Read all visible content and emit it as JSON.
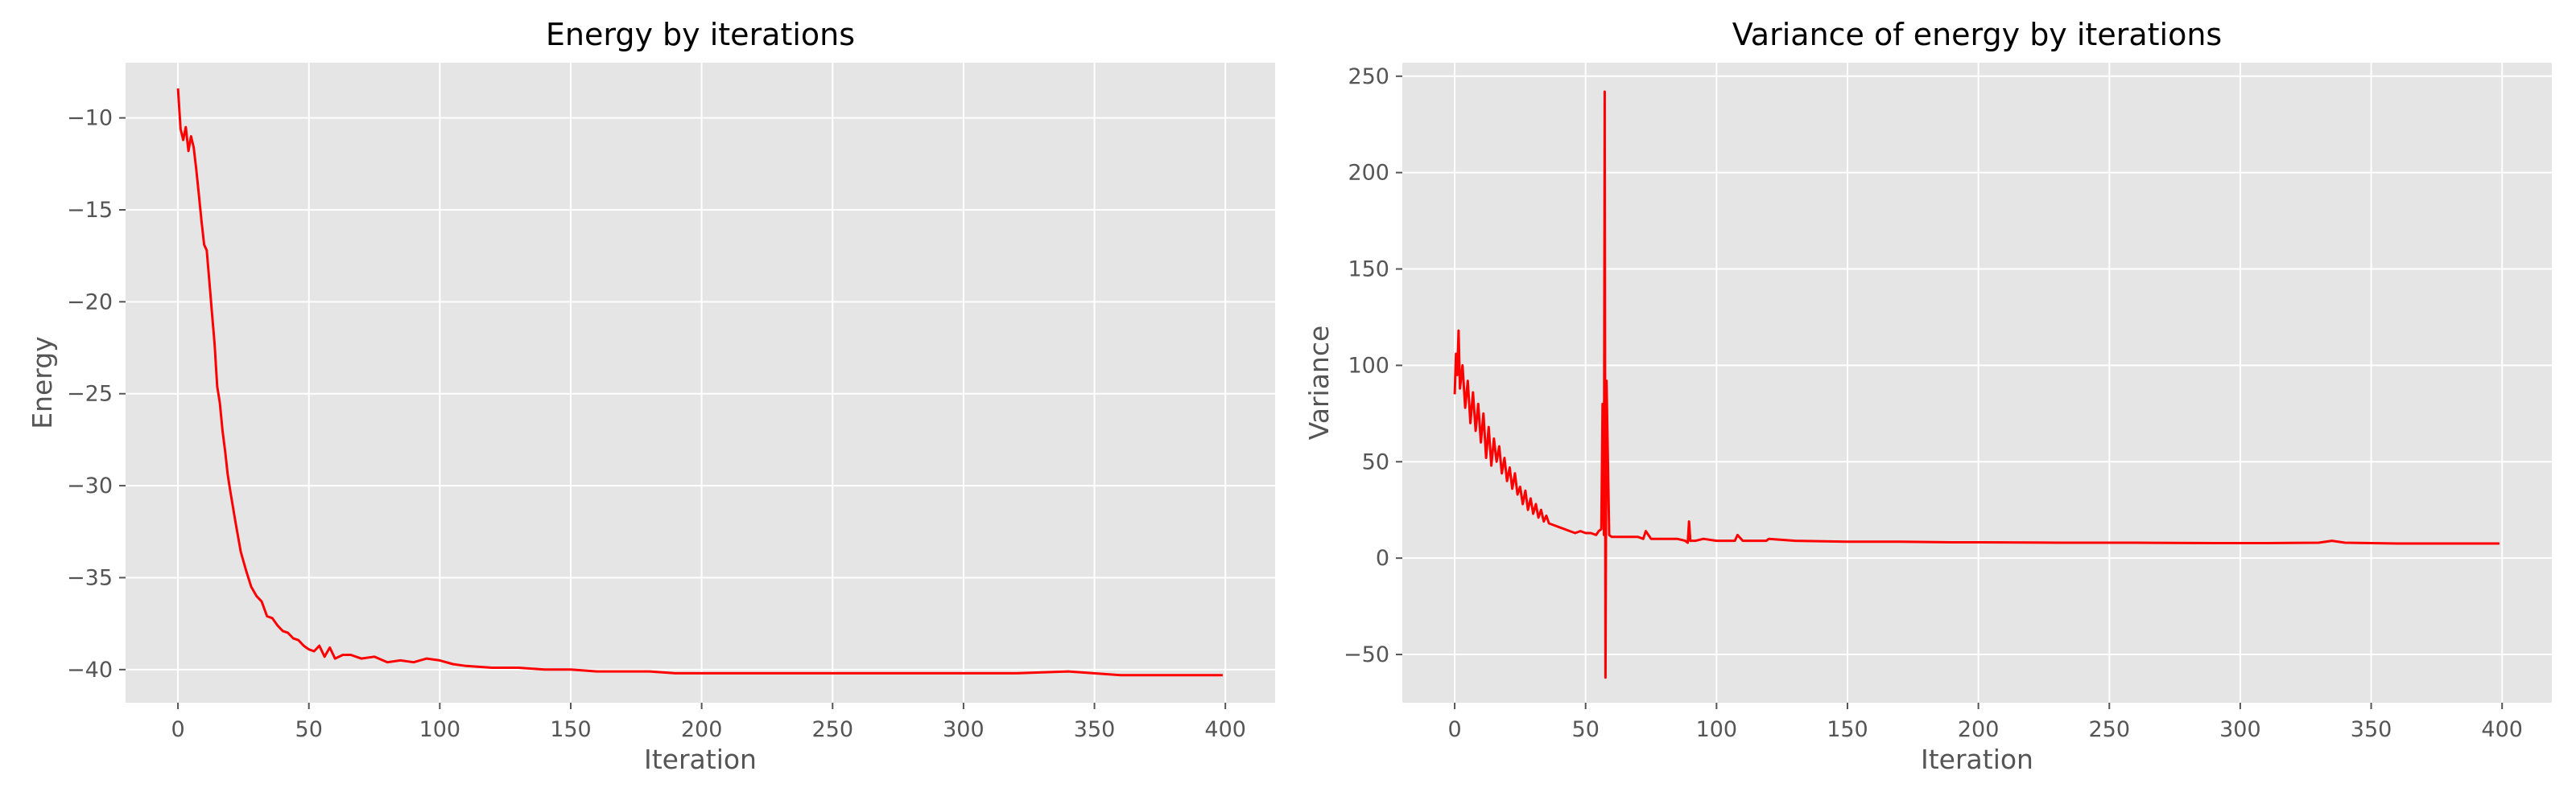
{
  "style": {
    "plot_bg": "#E5E5E5",
    "grid": "#FFFFFF",
    "line": "#FF0000",
    "tick_text": "#555555",
    "title_text": "#000000"
  },
  "chart_data": [
    {
      "type": "line",
      "title": "Energy by iterations",
      "xlabel": "Iteration",
      "ylabel": "Energy",
      "xlim": [
        -20,
        419
      ],
      "ylim": [
        -41.8,
        -7.0
      ],
      "xticks": [
        0,
        50,
        100,
        150,
        200,
        250,
        300,
        350,
        400
      ],
      "yticks": [
        -40,
        -35,
        -30,
        -25,
        -20,
        -15,
        -10
      ],
      "tick_labels_x": [
        "0",
        "50",
        "100",
        "150",
        "200",
        "250",
        "300",
        "350",
        "400"
      ],
      "tick_labels_y": [
        "−40",
        "−35",
        "−30",
        "−25",
        "−20",
        "−15",
        "−10"
      ],
      "grid": true,
      "series": [
        {
          "color": "#FF0000",
          "x": [
            0,
            1,
            2,
            3,
            4,
            5,
            6,
            7,
            8,
            9,
            10,
            11,
            12,
            13,
            14,
            15,
            16,
            17,
            18,
            19,
            20,
            22,
            24,
            26,
            28,
            30,
            32,
            34,
            36,
            38,
            40,
            42,
            44,
            46,
            48,
            50,
            52,
            54,
            56,
            58,
            60,
            63,
            66,
            70,
            75,
            80,
            85,
            90,
            95,
            100,
            105,
            110,
            120,
            130,
            140,
            150,
            160,
            170,
            180,
            190,
            200,
            220,
            240,
            260,
            280,
            300,
            320,
            340,
            360,
            380,
            399
          ],
          "y": [
            -8.4,
            -10.6,
            -11.2,
            -10.5,
            -11.8,
            -11.0,
            -11.6,
            -12.8,
            -14.2,
            -15.6,
            -16.9,
            -17.2,
            -18.9,
            -20.6,
            -22.3,
            -24.6,
            -25.5,
            -27.0,
            -28.1,
            -29.4,
            -30.3,
            -32.0,
            -33.6,
            -34.6,
            -35.5,
            -36.0,
            -36.3,
            -37.1,
            -37.2,
            -37.6,
            -37.9,
            -38.0,
            -38.3,
            -38.4,
            -38.7,
            -38.9,
            -39.0,
            -38.7,
            -39.3,
            -38.8,
            -39.4,
            -39.2,
            -39.2,
            -39.4,
            -39.3,
            -39.6,
            -39.5,
            -39.6,
            -39.4,
            -39.5,
            -39.7,
            -39.8,
            -39.9,
            -39.9,
            -40.0,
            -40.0,
            -40.1,
            -40.1,
            -40.1,
            -40.2,
            -40.2,
            -40.2,
            -40.2,
            -40.2,
            -40.2,
            -40.2,
            -40.2,
            -40.1,
            -40.3,
            -40.3,
            -40.3
          ]
        }
      ]
    },
    {
      "type": "line",
      "title": "Variance of energy by iterations",
      "xlabel": "Iteration",
      "ylabel": "Variance",
      "xlim": [
        -20,
        419
      ],
      "ylim": [
        -75,
        257
      ],
      "xticks": [
        0,
        50,
        100,
        150,
        200,
        250,
        300,
        350,
        400
      ],
      "yticks": [
        -50,
        0,
        50,
        100,
        150,
        200,
        250
      ],
      "tick_labels_x": [
        "0",
        "50",
        "100",
        "150",
        "200",
        "250",
        "300",
        "350",
        "400"
      ],
      "tick_labels_y": [
        "−50",
        "0",
        "50",
        "100",
        "150",
        "200",
        "250"
      ],
      "grid": true,
      "series": [
        {
          "color": "#FF0000",
          "x": [
            0,
            0.5,
            1,
            1.5,
            2,
            3,
            4,
            5,
            6,
            7,
            8,
            9,
            10,
            11,
            12,
            13,
            14,
            15,
            16,
            17,
            18,
            19,
            20,
            21,
            22,
            23,
            24,
            25,
            26,
            27,
            28,
            29,
            30,
            31,
            32,
            33,
            34,
            35,
            36,
            38,
            40,
            42,
            44,
            46,
            48,
            50,
            52,
            54,
            55,
            56,
            56.5,
            57,
            57.3,
            57.6,
            58,
            59,
            60,
            65,
            70,
            72,
            73,
            75,
            80,
            85,
            88,
            89,
            89.5,
            90,
            92,
            95,
            100,
            105,
            107,
            108,
            110,
            115,
            119,
            120,
            130,
            150,
            170,
            190,
            200,
            230,
            260,
            290,
            310,
            330,
            335,
            340,
            360,
            380,
            399
          ],
          "y": [
            85,
            106,
            95,
            118,
            88,
            100,
            78,
            92,
            70,
            86,
            66,
            80,
            60,
            75,
            52,
            68,
            48,
            62,
            50,
            58,
            44,
            52,
            40,
            47,
            36,
            44,
            33,
            37,
            28,
            35,
            25,
            31,
            23,
            28,
            21,
            25,
            19,
            22,
            18,
            17,
            16,
            15,
            14,
            13,
            14,
            13,
            13,
            12,
            14,
            15,
            80,
            12,
            242,
            -62,
            92,
            12,
            11,
            11,
            11,
            10,
            14,
            10,
            10,
            10,
            9,
            8,
            19,
            9,
            9,
            10,
            9,
            9,
            9,
            12,
            9,
            9,
            9,
            10,
            9,
            8.5,
            8.5,
            8.2,
            8.2,
            8.0,
            8.0,
            7.8,
            7.8,
            8.0,
            9.0,
            8.0,
            7.6,
            7.6,
            7.6
          ]
        }
      ]
    }
  ]
}
